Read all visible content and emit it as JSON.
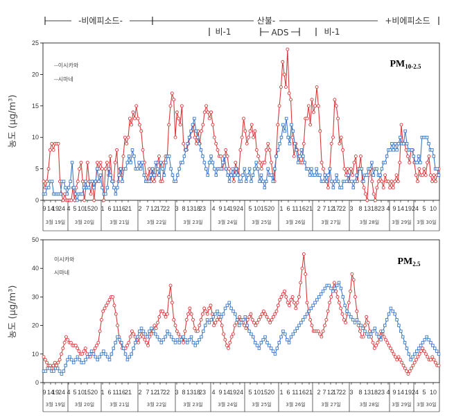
{
  "periods": [
    {
      "label": "-비에피소드-",
      "x0": "3월 19일",
      "x1": "3월 22일"
    },
    {
      "label": "산불-",
      "x0": "3월 22일",
      "x1": "3월 30일"
    },
    {
      "label": "+비에피소드",
      "x0": "3월 29일",
      "x1": "3월 30일"
    },
    {
      "label": "비-1",
      "x0": "3월 24일",
      "x1": "3월 25일"
    },
    {
      "label": "ADS",
      "x0": "3월 25일",
      "x1": "3월 26일"
    },
    {
      "label": "비-1",
      "x0": "3월 27일",
      "x1": "3월 28일"
    }
  ],
  "colors": {
    "ishikawa": "#d9383a",
    "shimane": "#3b78c8"
  },
  "chart_data": [
    {
      "type": "line",
      "title": "PM10-2.5",
      "ylabel": "농도 (μg/m³)",
      "ylim": [
        0,
        25
      ],
      "yticks": [
        0,
        5,
        10,
        15,
        20,
        25
      ],
      "grid": false,
      "legend_position": "top-left",
      "hour_ticks": [
        "9",
        "14",
        "19",
        "24",
        "4",
        "5",
        "10",
        "15",
        "20",
        "1",
        "6",
        "11",
        "16",
        "21",
        "2",
        "7",
        "12",
        "17",
        "22",
        "3",
        "8",
        "13",
        "18",
        "23",
        "4",
        "9",
        "14",
        "19",
        "24",
        "5",
        "10",
        "15",
        "20",
        "1",
        "6",
        "11",
        "16",
        "21",
        "2",
        "7",
        "12",
        "17",
        "22",
        "3",
        "8",
        "13",
        "18",
        "23",
        "4",
        "9",
        "14",
        "19",
        "24",
        "5",
        "10"
      ],
      "day_labels": [
        "3월 19일",
        "3월 20일",
        "3월 21일",
        "3월 22일",
        "3월 23일",
        "3월 24일",
        "3월 25일",
        "3월 26일",
        "3월 27일",
        "3월 28일",
        "3월 29일",
        "3월 30일"
      ],
      "series": [
        {
          "name": "--이시카와",
          "color": "#d9383a",
          "marker": "circle",
          "values": [
            3,
            2,
            3,
            5,
            8,
            9,
            8,
            9,
            9,
            9,
            3,
            1,
            0,
            1,
            0,
            0,
            0,
            0,
            2,
            0,
            2,
            3,
            5,
            6,
            3,
            0,
            2,
            6,
            3,
            1,
            3,
            0,
            3,
            6,
            5,
            6,
            5,
            0,
            5,
            6,
            4,
            7,
            3,
            3,
            6,
            8,
            3,
            5,
            4,
            7,
            10,
            9,
            10,
            13,
            12,
            14,
            13,
            15,
            13,
            12,
            11,
            8,
            6,
            4,
            3,
            5,
            3,
            5,
            3,
            4,
            6,
            7,
            3,
            3,
            6,
            7,
            7,
            12,
            15,
            17,
            16,
            10,
            14,
            13,
            12,
            15,
            9,
            8,
            8,
            9,
            10,
            11,
            12,
            10,
            9,
            11,
            9,
            11,
            12,
            14,
            15,
            14,
            13,
            14,
            12,
            10,
            9,
            8,
            7,
            7,
            5,
            6,
            8,
            7,
            5,
            4,
            4,
            3,
            6,
            5,
            4,
            8,
            10,
            13,
            11,
            9,
            10,
            11,
            12,
            10,
            11,
            8,
            7,
            6,
            5,
            6,
            6,
            8,
            9,
            8,
            6,
            4,
            3,
            7,
            12,
            15,
            18,
            22,
            20,
            18,
            24,
            17,
            16,
            10,
            7,
            9,
            8,
            7,
            6,
            6,
            9,
            13,
            13,
            15,
            12,
            16,
            14,
            15,
            18,
            15,
            11,
            6,
            5,
            4,
            3,
            2,
            5,
            9,
            10,
            16,
            15,
            13,
            9,
            10,
            8,
            5,
            4,
            5,
            3,
            5,
            4,
            6,
            7,
            3,
            5,
            7,
            3,
            2,
            1,
            0,
            4,
            5,
            3,
            1,
            0,
            2,
            3,
            4,
            3,
            2,
            4,
            3,
            3,
            2,
            3,
            2,
            3,
            4,
            3,
            6,
            12,
            9,
            9,
            8,
            7,
            6,
            8,
            8,
            6,
            4,
            3,
            5,
            4,
            4,
            5,
            4,
            6,
            7,
            4,
            3,
            4,
            3,
            4,
            5
          ]
        },
        {
          "name": "--시마네",
          "color": "#3b78c8",
          "marker": "square",
          "values": [
            1,
            1,
            2,
            2,
            3,
            3,
            1,
            1,
            1,
            1,
            1,
            3,
            3,
            2,
            1,
            2,
            3,
            6,
            2,
            1,
            0,
            1,
            1,
            1,
            2,
            3,
            2,
            2,
            3,
            3,
            2,
            3,
            5,
            3,
            4,
            2,
            1,
            1,
            2,
            5,
            4,
            3,
            2,
            1,
            2,
            4,
            5,
            3,
            5,
            5,
            6,
            7,
            6,
            8,
            7,
            5,
            5,
            6,
            5,
            6,
            4,
            3,
            3,
            3,
            4,
            5,
            4,
            6,
            5,
            4,
            6,
            5,
            4,
            6,
            7,
            7,
            5,
            4,
            3,
            3,
            4,
            5,
            6,
            6,
            7,
            8,
            9,
            10,
            11,
            12,
            13,
            11,
            10,
            9,
            8,
            7,
            6,
            5,
            4,
            6,
            7,
            6,
            5,
            4,
            5,
            5,
            5,
            6,
            7,
            5,
            4,
            3,
            4,
            5,
            4,
            5,
            4,
            3,
            3,
            4,
            5,
            3,
            4,
            5,
            3,
            4,
            5,
            6,
            5,
            3,
            4,
            3,
            2,
            3,
            5,
            4,
            4,
            3,
            5,
            7,
            8,
            9,
            10,
            12,
            11,
            13,
            10,
            9,
            12,
            11,
            9,
            8,
            6,
            7,
            8,
            7,
            6,
            5,
            5,
            4,
            5,
            4,
            4,
            5,
            4,
            4,
            3,
            3,
            4,
            3,
            4,
            5,
            3,
            2,
            3,
            4,
            3,
            2,
            2,
            3,
            3,
            3,
            4,
            3,
            3,
            2,
            3,
            4,
            5,
            5,
            5,
            3,
            4,
            4,
            5,
            5,
            6,
            4,
            5,
            5,
            4,
            4,
            5,
            6,
            6,
            7,
            8,
            8,
            9,
            8,
            9,
            8,
            9,
            10,
            9,
            9,
            11,
            9,
            8,
            8,
            8,
            7,
            6,
            6,
            7,
            6,
            10,
            10,
            10,
            10,
            9,
            8,
            8,
            7,
            5,
            5,
            4
          ]
        }
      ]
    },
    {
      "type": "line",
      "title": "PM2.5",
      "ylabel": "농도 (μg/m³)",
      "ylim": [
        0,
        50
      ],
      "yticks": [
        0,
        10,
        20,
        30,
        40,
        50
      ],
      "grid": false,
      "legend_position": "top-left",
      "hour_ticks": [
        "9",
        "14",
        "19",
        "24",
        "4",
        "5",
        "10",
        "15",
        "20",
        "1",
        "6",
        "11",
        "16",
        "21",
        "2",
        "7",
        "12",
        "17",
        "22",
        "3",
        "8",
        "13",
        "18",
        "23",
        "4",
        "9",
        "14",
        "19",
        "24",
        "5",
        "10",
        "15",
        "20",
        "1",
        "6",
        "11",
        "16",
        "21",
        "2",
        "7",
        "12",
        "17",
        "22",
        "3",
        "8",
        "13",
        "18",
        "23",
        "4",
        "9",
        "14",
        "19",
        "24",
        "5",
        "10"
      ],
      "day_labels": [
        "3월 19일",
        "3월 20일",
        "3월 21일",
        "3월 22일",
        "3월 23일",
        "3월 24일",
        "3월 25일",
        "3월 26일",
        "3월 27일",
        "3월 28일",
        "3월 29일",
        "3월 30일"
      ],
      "series": [
        {
          "name": "이시카와",
          "color": "#d9383a",
          "marker": "circle",
          "values": [
            9,
            8,
            7,
            6,
            6,
            5,
            6,
            7,
            6,
            7,
            8,
            10,
            12,
            14,
            16,
            15,
            14,
            14,
            13,
            13,
            13,
            12,
            11,
            10,
            10,
            11,
            12,
            10,
            9,
            9,
            10,
            11,
            12,
            13,
            14,
            18,
            22,
            25,
            26,
            27,
            28,
            29,
            30,
            30,
            27,
            24,
            20,
            16,
            14,
            12,
            12,
            12,
            13,
            14,
            16,
            18,
            17,
            16,
            15,
            14,
            16,
            18,
            16,
            15,
            14,
            13,
            16,
            17,
            18,
            20,
            19,
            21,
            23,
            25,
            25,
            24,
            23,
            24,
            30,
            34,
            28,
            22,
            20,
            18,
            17,
            16,
            15,
            14,
            18,
            22,
            24,
            26,
            24,
            22,
            19,
            18,
            18,
            20,
            22,
            24,
            26,
            25,
            24,
            26,
            27,
            24,
            20,
            21,
            22,
            23,
            22,
            20,
            17,
            15,
            13,
            12,
            14,
            16,
            17,
            20,
            21,
            22,
            23,
            22,
            21,
            20,
            19,
            22,
            23,
            24,
            22,
            21,
            20,
            21,
            22,
            23,
            24,
            25,
            24,
            23,
            22,
            21,
            22,
            23,
            24,
            25,
            27,
            29,
            30,
            31,
            32,
            30,
            28,
            27,
            29,
            30,
            28,
            26,
            28,
            30,
            35,
            40,
            45,
            38,
            28,
            25,
            22,
            20,
            18,
            18,
            18,
            18,
            17,
            16,
            18,
            20,
            22,
            25,
            28,
            30,
            33,
            35,
            32,
            30,
            28,
            26,
            24,
            22,
            21,
            24,
            28,
            32,
            38,
            36,
            30,
            25,
            20,
            18,
            16,
            16,
            20,
            23,
            21,
            18,
            16,
            14,
            12,
            13,
            14,
            16,
            18,
            17,
            16,
            15,
            14,
            13,
            12,
            11,
            10,
            9,
            8,
            9,
            8,
            7,
            6,
            5,
            4,
            3,
            4,
            5,
            6,
            7,
            8,
            9,
            10,
            11,
            12,
            11,
            10,
            9,
            8,
            8,
            9,
            8,
            7,
            6,
            6
          ]
        },
        {
          "name": "시마네",
          "color": "#3b78c8",
          "marker": "square",
          "values": [
            4,
            4,
            5,
            5,
            4,
            4,
            5,
            5,
            4,
            3,
            4,
            6,
            8,
            9,
            8,
            7,
            8,
            9,
            8,
            7,
            7,
            8,
            9,
            10,
            11,
            10,
            9,
            8,
            9,
            10,
            11,
            10,
            9,
            8,
            10,
            12,
            14,
            16,
            15,
            14,
            12,
            10,
            8,
            9,
            10,
            12,
            14,
            16,
            18,
            19,
            18,
            17,
            16,
            18,
            19,
            18,
            17,
            16,
            15,
            14,
            15,
            16,
            18,
            17,
            16,
            15,
            14,
            15,
            14,
            15,
            16,
            15,
            14,
            15,
            16,
            14,
            13,
            14,
            15,
            16,
            18,
            20,
            22,
            21,
            22,
            23,
            24,
            25,
            24,
            23,
            24,
            26,
            27,
            28,
            26,
            25,
            24,
            22,
            20,
            21,
            22,
            23,
            20,
            18,
            17,
            16,
            14,
            13,
            12,
            14,
            15,
            16,
            14,
            13,
            12,
            11,
            10,
            12,
            14,
            16,
            18,
            17,
            15,
            14,
            16,
            17,
            18,
            19,
            20,
            21,
            22,
            23,
            24,
            25,
            26,
            27,
            28,
            29,
            30,
            31,
            32,
            33,
            34,
            34,
            33,
            32,
            33,
            34,
            35,
            33,
            30,
            27,
            25,
            24,
            23,
            22,
            21,
            22,
            21,
            20,
            19,
            18,
            17,
            16,
            17,
            18,
            19,
            17,
            16,
            15,
            18,
            20,
            22,
            24,
            26,
            25,
            24,
            22,
            20,
            18,
            16,
            14,
            12,
            10,
            8,
            9,
            10,
            11,
            12,
            13,
            14,
            15,
            16,
            15,
            14,
            13,
            12,
            11,
            10
          ]
        }
      ]
    }
  ]
}
